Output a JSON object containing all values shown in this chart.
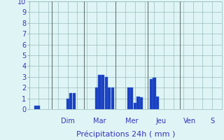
{
  "bars": [
    {
      "x": 2,
      "height": 0.3
    },
    {
      "x": 3,
      "height": 0.3
    },
    {
      "x": 12,
      "height": 1.0
    },
    {
      "x": 13,
      "height": 1.5
    },
    {
      "x": 14,
      "height": 1.5
    },
    {
      "x": 21,
      "height": 2.0
    },
    {
      "x": 22,
      "height": 3.2
    },
    {
      "x": 23,
      "height": 3.2
    },
    {
      "x": 24,
      "height": 3.0
    },
    {
      "x": 25,
      "height": 2.0
    },
    {
      "x": 26,
      "height": 2.0
    },
    {
      "x": 31,
      "height": 2.0
    },
    {
      "x": 32,
      "height": 2.0
    },
    {
      "x": 33,
      "height": 0.6
    },
    {
      "x": 34,
      "height": 1.2
    },
    {
      "x": 35,
      "height": 1.1
    },
    {
      "x": 38,
      "height": 2.8
    },
    {
      "x": 39,
      "height": 2.9
    },
    {
      "x": 40,
      "height": 1.2
    }
  ],
  "day_lines_x": [
    7,
    17,
    27,
    37,
    47
  ],
  "day_labels": [
    {
      "x": 12,
      "label": "Dim"
    },
    {
      "x": 22,
      "label": "Mar"
    },
    {
      "x": 32,
      "label": "Mer"
    },
    {
      "x": 41,
      "label": "Jeu"
    },
    {
      "x": 50,
      "label": "Ven"
    },
    {
      "x": 57,
      "label": "S"
    }
  ],
  "yticks": [
    0,
    1,
    2,
    3,
    4,
    5,
    6,
    7,
    8,
    9,
    10
  ],
  "ylim": [
    0,
    10
  ],
  "xlim": [
    0,
    60
  ],
  "bar_width": 0.9,
  "bar_color": "#1a3fbf",
  "bar_edge_color": "#3366dd",
  "bg_color": "#dff5f5",
  "grid_color": "#99bbbb",
  "sep_line_color": "#667777",
  "text_color": "#3333bb",
  "xlabel": "Précipitations 24h ( mm )",
  "xlabel_fontsize": 8,
  "tick_fontsize": 7,
  "day_label_fontsize": 7
}
